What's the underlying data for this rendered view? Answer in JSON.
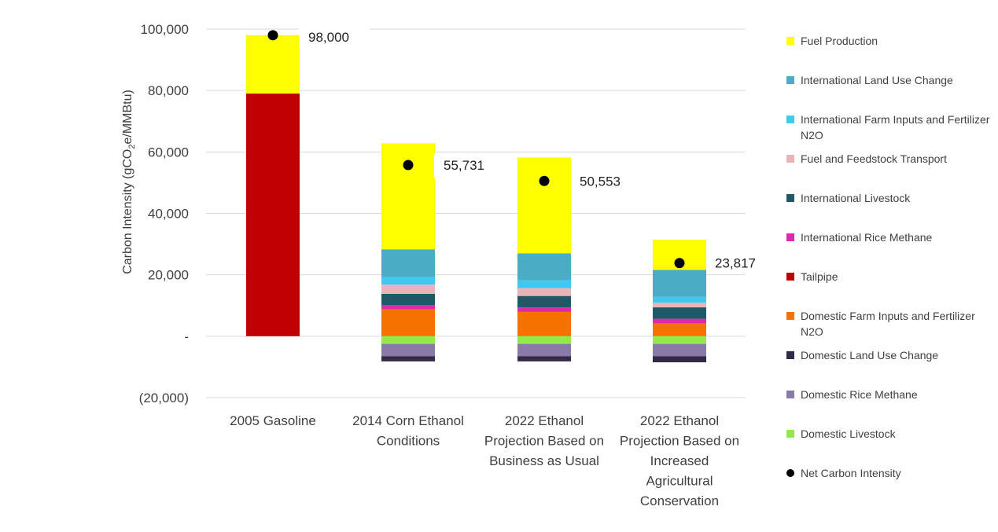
{
  "chart_data": {
    "type": "bar",
    "stacked": true,
    "title": "",
    "xlabel": "",
    "ylabel_parts": [
      "Carbon Intensity (gCO",
      "2",
      "e/MMBtu)"
    ],
    "ylim": [
      -20000,
      100000
    ],
    "yticks": [
      {
        "value": 100000,
        "label": "100,000"
      },
      {
        "value": 80000,
        "label": "80,000"
      },
      {
        "value": 60000,
        "label": "60,000"
      },
      {
        "value": 40000,
        "label": "40,000"
      },
      {
        "value": 20000,
        "label": "20,000"
      },
      {
        "value": 0,
        "label": "-"
      },
      {
        "value": -20000,
        "label": "(20,000)"
      }
    ],
    "grid": true,
    "legend_position": "right",
    "categories": [
      [
        "2005 Gasoline"
      ],
      [
        "2014 Corn Ethanol",
        "Conditions"
      ],
      [
        "2022 Ethanol",
        "Projection Based on",
        "Business as Usual"
      ],
      [
        "2022 Ethanol",
        "Projection Based on",
        "Increased",
        "Agricultural",
        "Conservation"
      ]
    ],
    "series": [
      {
        "name": "Tailpipe",
        "color": "#c00000",
        "values": [
          79000,
          0,
          0,
          0
        ]
      },
      {
        "name": "Domestic Farm Inputs and Fertilizer N2O",
        "color": "#f57200",
        "values": [
          0,
          8800,
          7900,
          4200
        ]
      },
      {
        "name": "International Rice Methane",
        "color": "#de2aa8",
        "values": [
          0,
          1300,
          1500,
          1500
        ]
      },
      {
        "name": "International Livestock",
        "color": "#1f5866",
        "values": [
          0,
          3700,
          3700,
          3700
        ]
      },
      {
        "name": "Fuel and Feedstock Transport",
        "color": "#e8b4b8",
        "values": [
          0,
          3000,
          2600,
          1500
        ]
      },
      {
        "name": "International Farm Inputs and Fertilizer N2O",
        "color": "#3ec9f0",
        "values": [
          0,
          2500,
          2500,
          1900
        ]
      },
      {
        "name": "International Land Use Change",
        "color": "#4bacc6",
        "values": [
          0,
          9000,
          8800,
          8800
        ]
      },
      {
        "name": "Fuel Production",
        "color": "#ffff00",
        "values": [
          19000,
          34500,
          31200,
          9800
        ]
      },
      {
        "name": "Domestic Livestock",
        "color": "#92e84c",
        "values": [
          0,
          -2500,
          -2500,
          -2500
        ]
      },
      {
        "name": "Domestic Rice Methane",
        "color": "#8a7aa8",
        "values": [
          0,
          -4000,
          -4000,
          -4000
        ]
      },
      {
        "name": "Domestic Land Use Change",
        "color": "#332a48",
        "values": [
          0,
          -1700,
          -1700,
          -2000
        ]
      }
    ],
    "net": {
      "name": "Net Carbon Intensity",
      "values": [
        98000,
        55731,
        50553,
        23817
      ],
      "labels": [
        "98,000",
        "55,731",
        "50,553",
        "23,817"
      ]
    }
  },
  "legend": [
    {
      "label": "Fuel Production",
      "color": "#ffff00",
      "marker": "square"
    },
    {
      "label": "International Land Use Change",
      "color": "#4bacc6",
      "marker": "square"
    },
    {
      "label": "International Farm Inputs and Fertilizer N2O",
      "color": "#3ec9f0",
      "marker": "square"
    },
    {
      "label": "Fuel and Feedstock Transport",
      "color": "#e8b4b8",
      "marker": "square"
    },
    {
      "label": "International Livestock",
      "color": "#1f5866",
      "marker": "square"
    },
    {
      "label": "International Rice Methane",
      "color": "#de2aa8",
      "marker": "square"
    },
    {
      "label": "Tailpipe",
      "color": "#c00000",
      "marker": "square"
    },
    {
      "label": "Domestic Farm Inputs and Fertilizer N2O",
      "color": "#f57200",
      "marker": "square"
    },
    {
      "label": "Domestic Land Use Change",
      "color": "#332a48",
      "marker": "square"
    },
    {
      "label": "Domestic Rice Methane",
      "color": "#8a7aa8",
      "marker": "square"
    },
    {
      "label": "Domestic Livestock",
      "color": "#92e84c",
      "marker": "square"
    },
    {
      "label": "Net Carbon Intensity",
      "color": "#000000",
      "marker": "dot"
    }
  ]
}
